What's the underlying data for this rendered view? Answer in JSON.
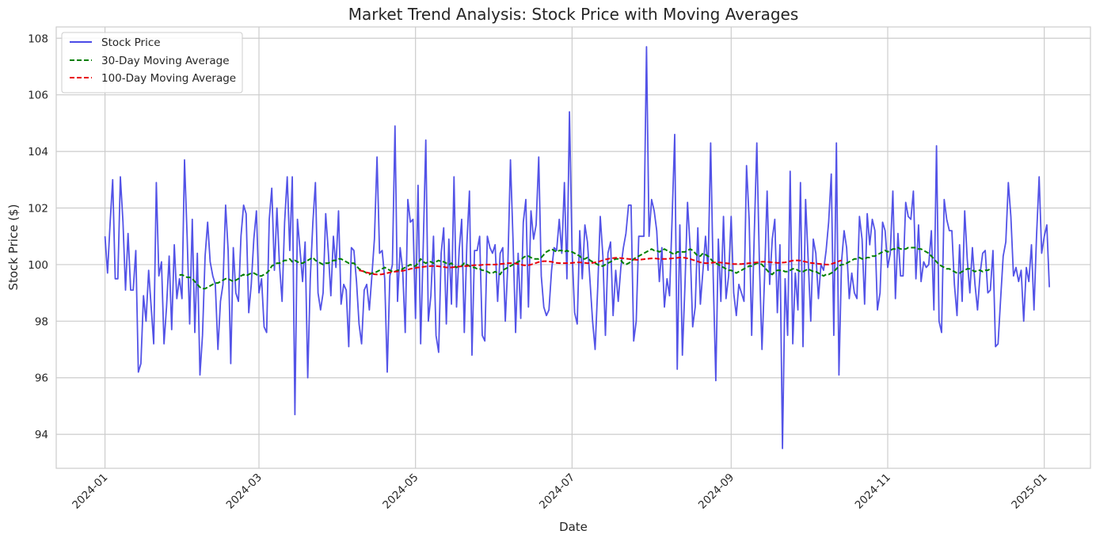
{
  "chart_data": {
    "type": "line",
    "title": "Market Trend Analysis: Stock Price with Moving Averages",
    "xlabel": "Date",
    "ylabel": "Stock Price ($)",
    "x_range": [
      "2023-12-13",
      "2025-01-19"
    ],
    "ylim": [
      92.8,
      108.4
    ],
    "x_ticks": [
      "2024-01",
      "2024-03",
      "2024-05",
      "2024-07",
      "2024-09",
      "2024-11",
      "2025-01"
    ],
    "y_ticks": [
      "94",
      "96",
      "98",
      "100",
      "102",
      "104",
      "106",
      "108"
    ],
    "grid": true,
    "legend_position": "upper left",
    "series": [
      {
        "name": "Stock Price",
        "color": "#4a4ae6",
        "style": "solid",
        "x_start": "2024-01-01",
        "step_days": 1,
        "values": [
          101.0,
          99.7,
          101.5,
          103.0,
          99.5,
          99.5,
          103.1,
          101.5,
          99.1,
          101.1,
          99.1,
          99.1,
          100.5,
          96.2,
          96.5,
          98.9,
          98.0,
          99.8,
          98.5,
          97.2,
          102.9,
          99.6,
          100.1,
          97.2,
          98.5,
          100.3,
          97.7,
          100.7,
          98.8,
          99.5,
          98.8,
          103.7,
          101.0,
          97.9,
          101.6,
          97.6,
          100.4,
          96.1,
          97.5,
          100.3,
          101.5,
          100.1,
          99.6,
          99.3,
          97.0,
          98.7,
          99.3,
          102.1,
          100.5,
          96.5,
          100.6,
          99.0,
          98.7,
          101.0,
          102.1,
          101.8,
          98.3,
          99.3,
          100.9,
          101.9,
          99.0,
          99.5,
          97.8,
          97.6,
          101.6,
          102.7,
          99.8,
          102.0,
          100.0,
          98.7,
          101.5,
          103.1,
          100.5,
          103.1,
          94.7,
          101.6,
          100.5,
          99.4,
          100.8,
          96.0,
          99.5,
          101.5,
          102.9,
          99.0,
          98.4,
          99.0,
          101.8,
          100.5,
          98.9,
          101.0,
          99.9,
          101.9,
          98.6,
          99.3,
          99.1,
          97.1,
          100.6,
          100.5,
          99.4,
          97.9,
          97.2,
          99.1,
          99.3,
          98.4,
          99.6,
          100.9,
          103.8,
          100.4,
          100.5,
          99.5,
          96.2,
          99.6,
          100.0,
          104.9,
          98.7,
          100.6,
          99.8,
          97.6,
          102.3,
          101.5,
          101.6,
          98.1,
          102.8,
          97.2,
          100.6,
          104.4,
          98.0,
          98.9,
          101.0,
          97.5,
          96.9,
          100.4,
          101.3,
          97.9,
          100.9,
          98.6,
          103.1,
          98.5,
          100.5,
          101.6,
          97.6,
          100.7,
          102.6,
          96.8,
          100.5,
          100.5,
          101.0,
          97.5,
          97.3,
          101.0,
          100.6,
          100.4,
          100.7,
          98.7,
          100.4,
          100.6,
          98.0,
          100.1,
          103.7,
          100.9,
          97.6,
          100.4,
          98.1,
          101.5,
          102.3,
          98.5,
          101.9,
          100.9,
          101.4,
          103.8,
          99.6,
          98.5,
          98.2,
          98.4,
          99.8,
          100.6,
          100.5,
          101.6,
          100.4,
          102.9,
          99.5,
          105.4,
          100.5,
          98.3,
          97.9,
          101.2,
          99.5,
          101.4,
          100.8,
          99.4,
          98.0,
          97.0,
          99.2,
          101.7,
          100.3,
          97.5,
          100.4,
          100.8,
          98.2,
          99.8,
          98.7,
          99.9,
          100.6,
          101.1,
          102.1,
          102.1,
          97.3,
          98.0,
          101.0,
          101.0,
          101.0,
          107.7,
          101.0,
          102.3,
          101.9,
          101.2,
          99.4,
          100.6,
          98.5,
          99.5,
          98.9,
          101.7,
          104.6,
          96.3,
          101.4,
          96.8,
          99.3,
          102.2,
          100.6,
          97.8,
          98.5,
          101.3,
          98.6,
          99.8,
          101.0,
          99.8,
          104.3,
          99.6,
          95.9,
          100.9,
          98.7,
          101.7,
          98.8,
          99.6,
          101.7,
          99.0,
          98.2,
          99.3,
          99.0,
          98.7,
          103.5,
          101.6,
          97.5,
          101.1,
          104.3,
          100.0,
          97.0,
          99.5,
          102.6,
          99.3,
          100.9,
          101.6,
          98.3,
          100.7,
          93.5,
          99.5,
          97.5,
          103.3,
          97.2,
          99.7,
          98.4,
          102.9,
          97.1,
          102.3,
          100.2,
          98.0,
          100.9,
          100.4,
          98.8,
          100.0,
          99.8,
          100.5,
          101.5,
          103.2,
          97.5,
          104.3,
          96.1,
          100.1,
          101.2,
          100.6,
          98.8,
          99.7,
          99.0,
          98.8,
          101.7,
          100.9,
          98.6,
          101.8,
          100.7,
          101.6,
          101.2,
          98.4,
          99.0,
          101.5,
          101.2,
          99.9,
          100.4,
          102.6,
          98.8,
          101.1,
          99.6,
          99.6,
          102.2,
          101.7,
          101.6,
          102.6,
          99.5,
          101.4,
          99.4,
          100.1,
          99.9,
          100.0,
          101.2,
          98.4,
          104.2,
          98.0,
          97.6,
          102.3,
          101.6,
          101.2,
          101.2,
          99.3,
          98.2,
          100.7,
          98.7,
          101.9,
          100.2,
          99.0,
          100.6,
          99.3,
          98.4,
          99.7,
          100.4,
          100.5,
          99.0,
          99.1,
          100.5,
          97.1,
          97.2,
          98.8,
          100.3,
          100.8,
          102.9,
          101.7,
          99.6,
          99.9,
          99.4,
          99.8,
          98.0,
          99.9,
          99.4,
          100.7,
          98.4,
          101.0,
          103.1,
          100.4,
          101.0,
          101.4,
          99.2
        ]
      },
      {
        "name": "30-Day Moving Average",
        "color": "#008000",
        "style": "dashed",
        "x_start": "2024-01-30",
        "step_days": 1,
        "values": [
          99.63,
          99.64,
          99.6,
          99.55,
          99.55,
          99.5,
          99.4,
          99.3,
          99.2,
          99.15,
          99.15,
          99.2,
          99.25,
          99.3,
          99.35,
          99.35,
          99.4,
          99.45,
          99.5,
          99.5,
          99.45,
          99.4,
          99.45,
          99.5,
          99.6,
          99.65,
          99.6,
          99.65,
          99.7,
          99.7,
          99.65,
          99.6,
          99.6,
          99.65,
          99.7,
          99.8,
          99.95,
          100.0,
          100.05,
          100.05,
          100.1,
          100.15,
          100.15,
          100.2,
          100.1,
          100.15,
          100.1,
          100.05,
          100.05,
          100.1,
          100.15,
          100.2,
          100.25,
          100.15,
          100.1,
          100.05,
          100.0,
          100.05,
          100.05,
          100.1,
          100.15,
          100.15,
          100.2,
          100.2,
          100.15,
          100.1,
          100.05,
          100.05,
          100.05,
          99.95,
          99.85,
          99.8,
          99.75,
          99.7,
          99.65,
          99.7,
          99.7,
          99.75,
          99.8,
          99.85,
          99.9,
          99.85,
          99.8,
          99.75,
          99.75,
          99.8,
          99.8,
          99.85,
          99.9,
          99.95,
          100.0,
          99.95,
          99.95,
          100.05,
          100.2,
          100.1,
          100.05,
          100.1,
          100.1,
          100.05,
          100.1,
          100.15,
          100.1,
          100.1,
          100.05,
          100.0,
          100.05,
          99.95,
          99.9,
          99.95,
          99.95,
          100.05,
          100.0,
          99.95,
          99.9,
          99.9,
          99.85,
          99.85,
          99.8,
          99.8,
          99.75,
          99.7,
          99.7,
          99.75,
          99.7,
          99.65,
          99.8,
          99.85,
          99.9,
          99.95,
          100.0,
          100.05,
          100.1,
          100.15,
          100.25,
          100.3,
          100.3,
          100.25,
          100.2,
          100.2,
          100.2,
          100.25,
          100.35,
          100.45,
          100.5,
          100.55,
          100.5,
          100.45,
          100.5,
          100.5,
          100.45,
          100.5,
          100.45,
          100.45,
          100.4,
          100.35,
          100.3,
          100.2,
          100.2,
          100.25,
          100.15,
          100.1,
          100.05,
          100.0,
          99.95,
          99.95,
          100.0,
          100.05,
          100.1,
          100.15,
          100.2,
          100.2,
          100.15,
          100.05,
          100.0,
          100.05,
          100.1,
          100.2,
          100.25,
          100.3,
          100.35,
          100.4,
          100.45,
          100.5,
          100.55,
          100.5,
          100.5,
          100.45,
          100.5,
          100.55,
          100.5,
          100.45,
          100.4,
          100.35,
          100.45,
          100.45,
          100.45,
          100.45,
          100.5,
          100.55,
          100.5,
          100.4,
          100.3,
          100.3,
          100.4,
          100.35,
          100.3,
          100.2,
          100.1,
          100.05,
          100.0,
          99.95,
          99.9,
          99.85,
          99.8,
          99.8,
          99.75,
          99.7,
          99.75,
          99.8,
          99.85,
          99.9,
          99.95,
          99.95,
          100.0,
          100.05,
          100.05,
          100.0,
          99.9,
          99.8,
          99.7,
          99.65,
          99.75,
          99.8,
          99.8,
          99.8,
          99.75,
          99.75,
          99.8,
          99.85,
          99.85,
          99.8,
          99.75,
          99.75,
          99.8,
          99.85,
          99.8,
          99.75,
          99.75,
          99.7,
          99.65,
          99.6,
          99.65,
          99.65,
          99.7,
          99.75,
          99.85,
          99.95,
          100.0,
          100.0,
          100.05,
          100.1,
          100.15,
          100.2,
          100.2,
          100.25,
          100.2,
          100.2,
          100.25,
          100.25,
          100.3,
          100.3,
          100.35,
          100.4,
          100.45,
          100.5,
          100.45,
          100.5,
          100.55,
          100.55,
          100.6,
          100.55,
          100.55,
          100.55,
          100.6,
          100.6,
          100.6,
          100.6,
          100.55,
          100.55,
          100.5,
          100.45,
          100.4,
          100.3,
          100.2,
          100.1,
          100.0,
          99.95,
          99.9,
          99.85,
          99.85,
          99.8,
          99.75,
          99.7,
          99.7,
          99.75,
          99.8,
          99.85,
          99.85,
          99.8,
          99.75,
          99.8,
          99.8,
          99.75,
          99.8,
          99.8,
          99.85
        ]
      },
      {
        "name": "100-Day Moving Average",
        "color": "#e8000b",
        "style": "dashed",
        "x_start": "2024-04-09",
        "step_days": 1,
        "values": [
          99.8,
          99.78,
          99.75,
          99.72,
          99.7,
          99.68,
          99.66,
          99.65,
          99.65,
          99.66,
          99.68,
          99.7,
          99.72,
          99.74,
          99.75,
          99.76,
          99.77,
          99.78,
          99.8,
          99.82,
          99.85,
          99.87,
          99.88,
          99.9,
          99.9,
          99.92,
          99.93,
          99.94,
          99.95,
          99.95,
          99.95,
          99.94,
          99.93,
          99.92,
          99.9,
          99.9,
          99.9,
          99.91,
          99.92,
          99.93,
          99.94,
          99.95,
          99.95,
          99.96,
          99.97,
          99.98,
          99.98,
          99.98,
          99.99,
          100.0,
          100.0,
          100.0,
          100.0,
          100.0,
          100.01,
          100.02,
          100.03,
          100.04,
          100.05,
          100.05,
          100.05,
          100.04,
          100.02,
          100.0,
          99.98,
          99.97,
          99.98,
          100.0,
          100.03,
          100.06,
          100.09,
          100.11,
          100.12,
          100.12,
          100.11,
          100.1,
          100.08,
          100.06,
          100.05,
          100.05,
          100.05,
          100.05,
          100.05,
          100.06,
          100.07,
          100.08,
          100.08,
          100.07,
          100.06,
          100.05,
          100.05,
          100.06,
          100.08,
          100.1,
          100.12,
          100.15,
          100.18,
          100.2,
          100.22,
          100.23,
          100.24,
          100.24,
          100.23,
          100.22,
          100.21,
          100.2,
          100.19,
          100.18,
          100.17,
          100.17,
          100.18,
          100.19,
          100.2,
          100.21,
          100.22,
          100.22,
          100.21,
          100.2,
          100.2,
          100.2,
          100.2,
          100.21,
          100.22,
          100.23,
          100.24,
          100.25,
          100.25,
          100.24,
          100.22,
          100.2,
          100.17,
          100.14,
          100.11,
          100.08,
          100.06,
          100.05,
          100.05,
          100.06,
          100.07,
          100.08,
          100.08,
          100.07,
          100.06,
          100.05,
          100.04,
          100.03,
          100.02,
          100.02,
          100.02,
          100.02,
          100.03,
          100.04,
          100.05,
          100.06,
          100.07,
          100.08,
          100.09,
          100.1,
          100.1,
          100.1,
          100.09,
          100.08,
          100.07,
          100.06,
          100.06,
          100.07,
          100.08,
          100.1,
          100.12,
          100.14,
          100.15,
          100.15,
          100.14,
          100.12,
          100.1,
          100.08,
          100.06,
          100.05,
          100.04,
          100.03,
          100.02,
          100.01,
          100.0,
          100.0,
          100.02,
          100.05,
          100.08,
          100.12,
          100.15
        ]
      }
    ]
  }
}
